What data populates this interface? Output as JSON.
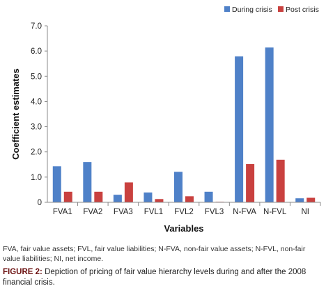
{
  "chart_data": {
    "type": "bar",
    "categories": [
      "FVA1",
      "FVA2",
      "FVA3",
      "FVL1",
      "FVL2",
      "FVL3",
      "N-FVA",
      "N-FVL",
      "NI"
    ],
    "series": [
      {
        "name": "During crisis",
        "values": [
          1.43,
          1.6,
          0.3,
          0.39,
          1.21,
          0.42,
          5.79,
          6.14,
          0.16
        ],
        "color": "#4f81c8"
      },
      {
        "name": "Post crisis",
        "values": [
          0.42,
          0.42,
          0.79,
          0.13,
          0.24,
          0.02,
          1.52,
          1.69,
          0.18
        ],
        "color": "#c9413f"
      }
    ],
    "xlabel": "Variables",
    "ylabel": "Coefficient estimates",
    "ylim": [
      0,
      7
    ],
    "yticks": [
      "0",
      "1.0",
      "2.0",
      "3.0",
      "4.0",
      "5.0",
      "6.0",
      "7.0"
    ],
    "grid": false,
    "legend": "top-right"
  },
  "footnote": "FVA, fair value assets; FVL, fair value liabilities; N-FVA, non-fair value assets; N-FVL, non-fair value liabilities; NI, net income.",
  "caption": {
    "label": "FIGURE 2:",
    "text": " Depiction of pricing of fair value hierarchy levels during and after the 2008 financial crisis."
  }
}
